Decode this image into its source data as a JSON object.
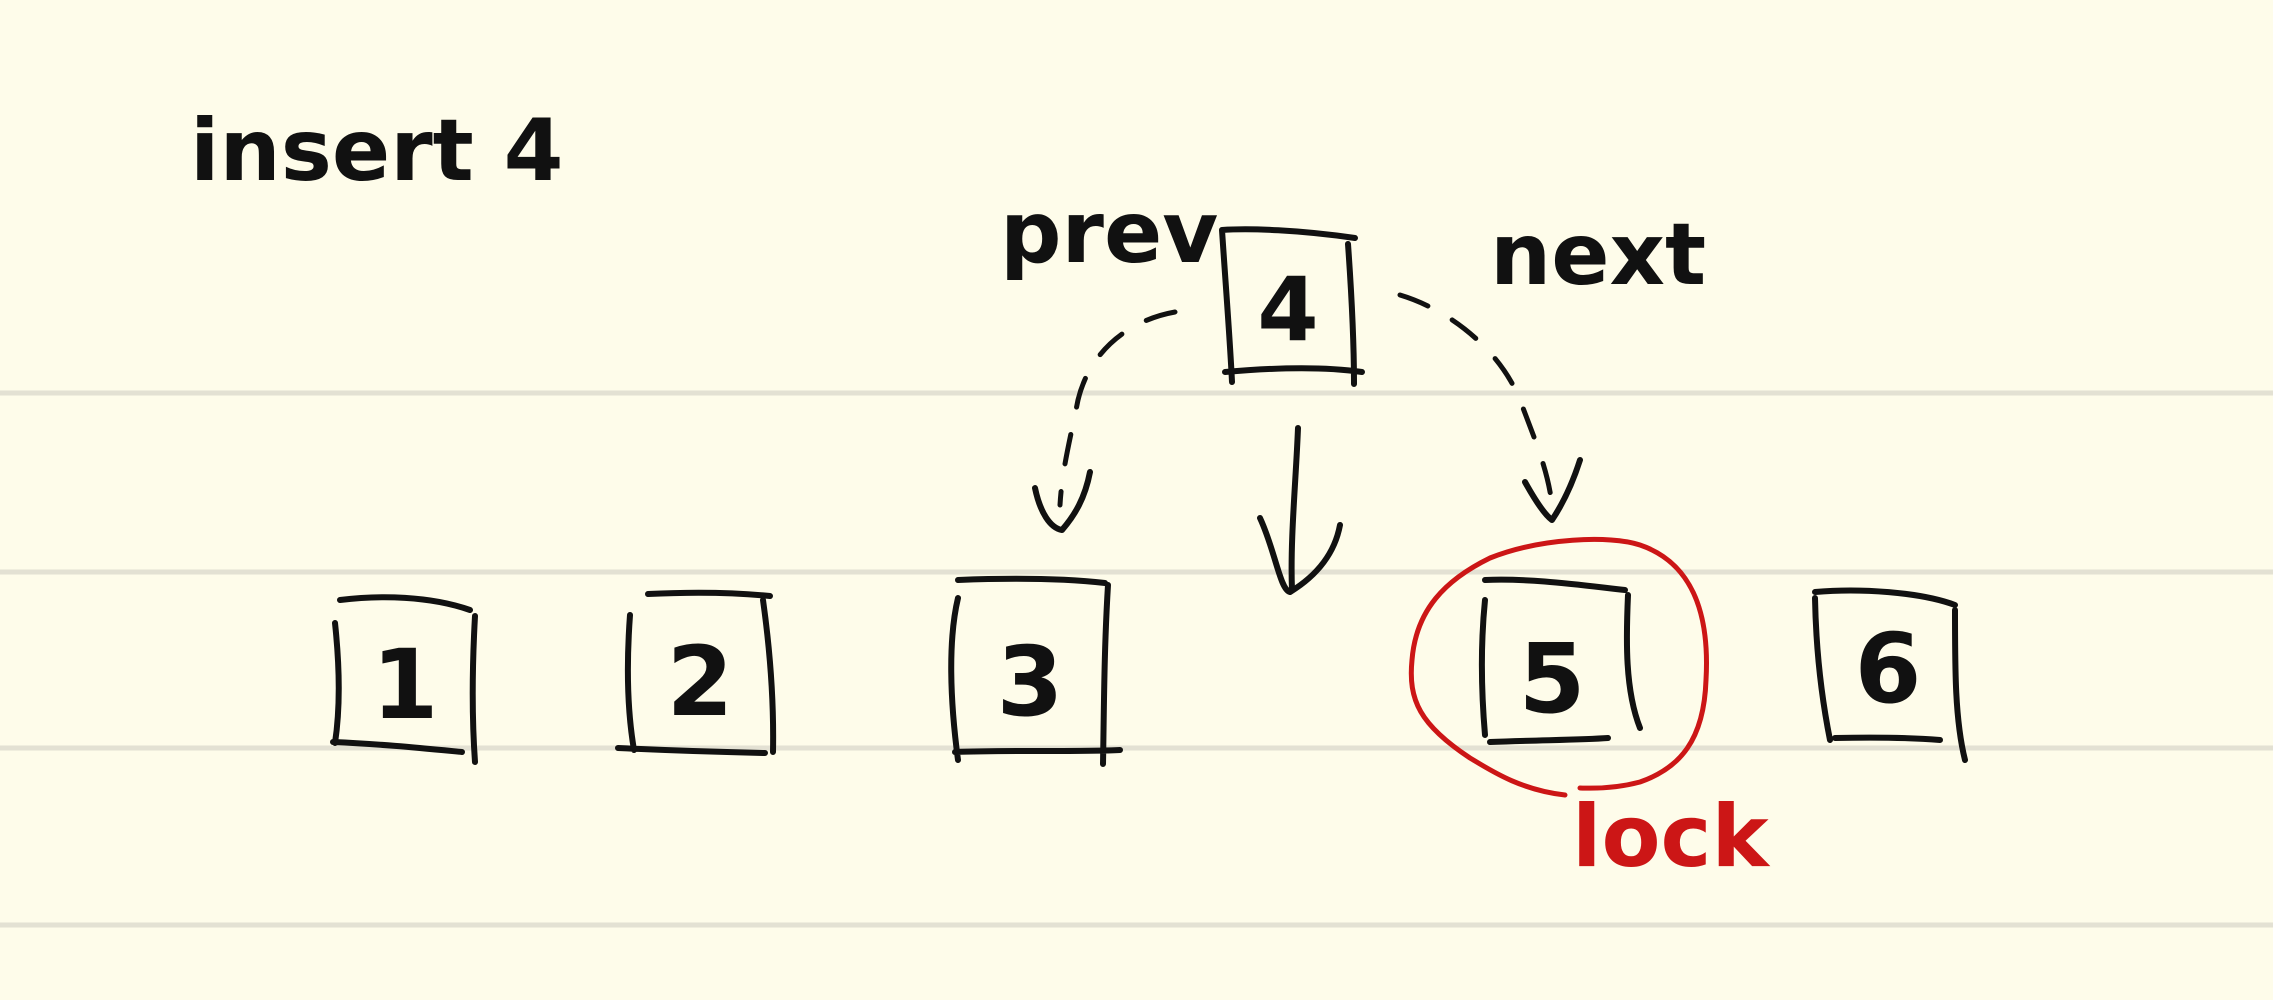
{
  "title": "insert 4",
  "labels": {
    "prev": "prev",
    "next": "next",
    "lock": "lock"
  },
  "new_node": {
    "value": "4"
  },
  "nodes": [
    {
      "value": "1"
    },
    {
      "value": "2"
    },
    {
      "value": "3"
    },
    {
      "value": "5",
      "locked": true
    },
    {
      "value": "6"
    }
  ],
  "colors": {
    "ink": "#111111",
    "highlight": "#cc1616",
    "paper": "#fefcea",
    "rule": "#e3e1d3"
  }
}
